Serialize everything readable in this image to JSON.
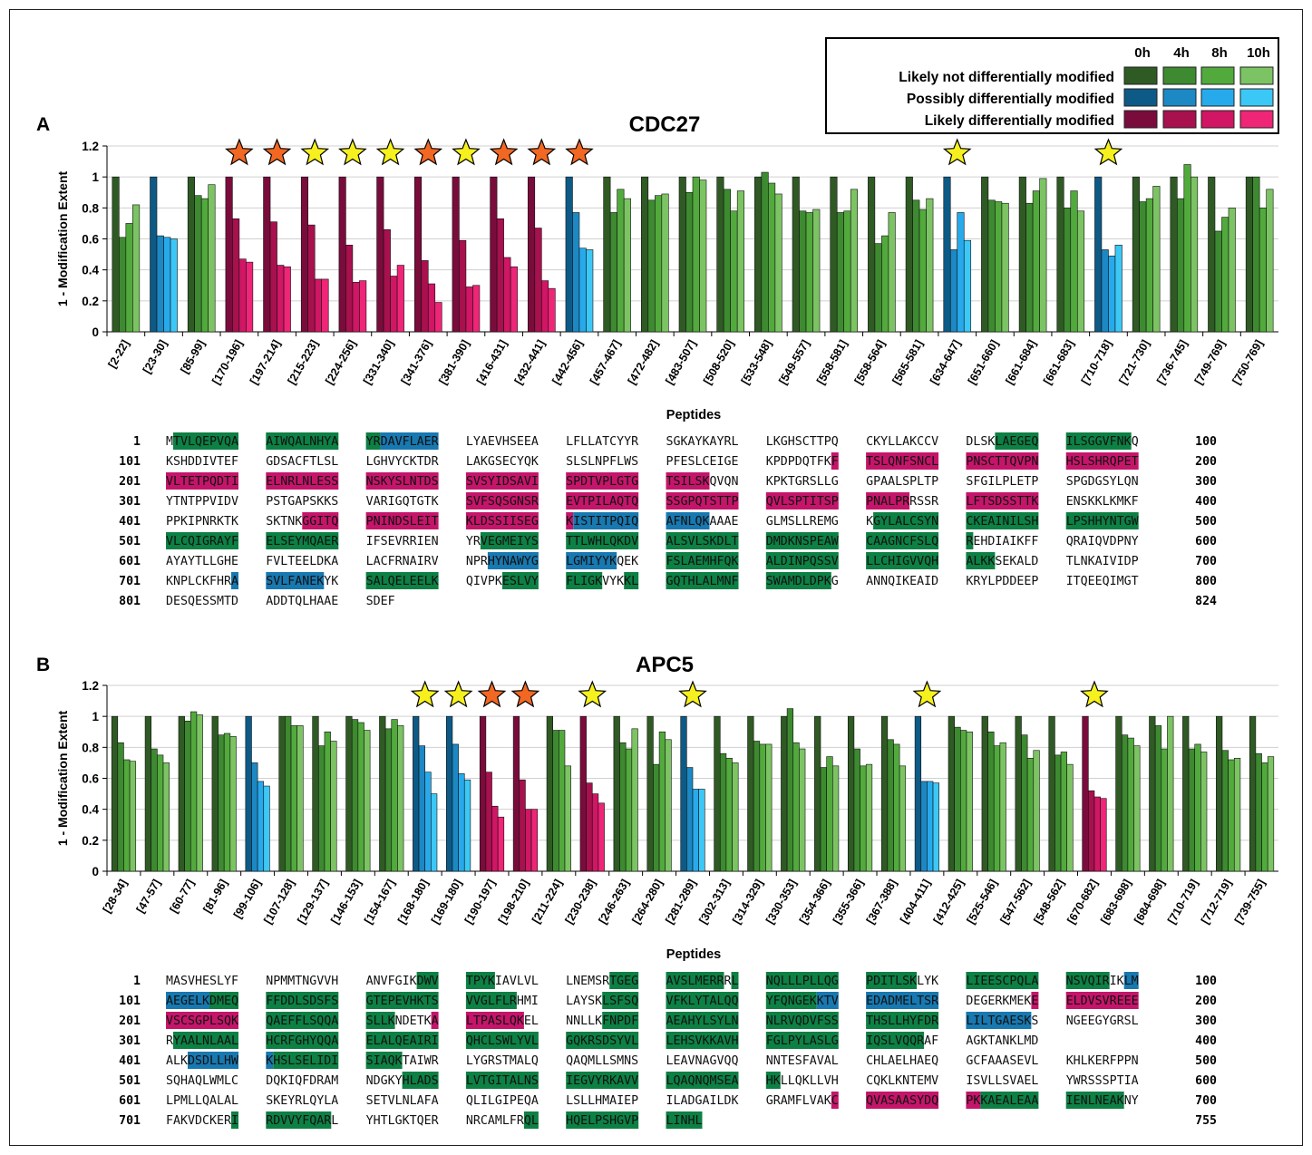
{
  "legend": {
    "timepoints": [
      "0h",
      "4h",
      "8h",
      "10h"
    ],
    "rows": [
      {
        "label": "Likely not differentially modified",
        "colors": [
          "#2f5a24",
          "#3d8a30",
          "#52aa3d",
          "#7cc463"
        ]
      },
      {
        "label": "Possibly differentially modified",
        "colors": [
          "#0d5a86",
          "#1c88c4",
          "#27aaec",
          "#3cc8f6"
        ]
      },
      {
        "label": "Likely differentially modified",
        "colors": [
          "#7a0c3c",
          "#a8104e",
          "#d01664",
          "#ef2577"
        ]
      }
    ],
    "seq_colors": {
      "g": "#0d8044",
      "b": "#1878b0",
      "r": "#c5156a"
    }
  },
  "chart_data": [
    {
      "type": "bar",
      "panel": "A",
      "title": "CDC27",
      "xlabel": "Peptides",
      "ylabel": "1 - Modification Extent",
      "ylim": [
        0,
        1.2
      ],
      "yticks": [
        "0",
        "0.2",
        "0.4",
        "0.6",
        "0.8",
        "1",
        "1.2"
      ],
      "series_names": [
        "0h",
        "4h",
        "8h",
        "10h"
      ],
      "categories": [
        "[2-22]",
        "[23-30]",
        "[85-99]",
        "[170-196]",
        "[197-214]",
        "[215-223]",
        "[224-256]",
        "[331-340]",
        "[341-376]",
        "[381-390]",
        "[416-431]",
        "[432-441]",
        "[442-456]",
        "[457-467]",
        "[472-482]",
        "[483-507]",
        "[508-520]",
        "[533-548]",
        "[549-557]",
        "[558-581]",
        "[558-564]",
        "[565-581]",
        "[634-647]",
        "[651-660]",
        "[661-684]",
        "[661-683]",
        "[710-718]",
        "[721-730]",
        "[736-745]",
        "[749-769]",
        "[750-769]"
      ],
      "values": [
        [
          1,
          0.61,
          0.7,
          0.82
        ],
        [
          1,
          0.62,
          0.61,
          0.6
        ],
        [
          1,
          0.88,
          0.86,
          0.95
        ],
        [
          1,
          0.73,
          0.47,
          0.45
        ],
        [
          1,
          0.71,
          0.43,
          0.42
        ],
        [
          1,
          0.69,
          0.34,
          0.34
        ],
        [
          1,
          0.56,
          0.32,
          0.33
        ],
        [
          1,
          0.66,
          0.36,
          0.43
        ],
        [
          1,
          0.46,
          0.31,
          0.19
        ],
        [
          1,
          0.59,
          0.29,
          0.3
        ],
        [
          1,
          0.73,
          0.48,
          0.42
        ],
        [
          1,
          0.67,
          0.33,
          0.28
        ],
        [
          1,
          0.77,
          0.54,
          0.53
        ],
        [
          1,
          0.77,
          0.92,
          0.86
        ],
        [
          1,
          0.85,
          0.88,
          0.89
        ],
        [
          1,
          0.9,
          1.0,
          0.98
        ],
        [
          1,
          0.92,
          0.78,
          0.91
        ],
        [
          1,
          1.03,
          0.96,
          0.89
        ],
        [
          1,
          0.78,
          0.77,
          0.79
        ],
        [
          1,
          0.77,
          0.78,
          0.92
        ],
        [
          1,
          0.57,
          0.62,
          0.77
        ],
        [
          1,
          0.85,
          0.79,
          0.86
        ],
        [
          1,
          0.53,
          0.77,
          0.59
        ],
        [
          1,
          0.85,
          0.84,
          0.83
        ],
        [
          1,
          0.83,
          0.91,
          0.99
        ],
        [
          1,
          0.8,
          0.91,
          0.78
        ],
        [
          1,
          0.53,
          0.49,
          0.56
        ],
        [
          1,
          0.84,
          0.86,
          0.94
        ],
        [
          1,
          0.86,
          1.08,
          1.0
        ],
        [
          1,
          0.65,
          0.74,
          0.8
        ],
        [
          1,
          1.0,
          0.8,
          0.92
        ]
      ],
      "classes": [
        "n",
        "p",
        "n",
        "d",
        "d",
        "d",
        "d",
        "d",
        "d",
        "d",
        "d",
        "d",
        "p",
        "n",
        "n",
        "n",
        "n",
        "n",
        "n",
        "n",
        "n",
        "n",
        "p",
        "n",
        "n",
        "n",
        "p",
        "n",
        "n",
        "n",
        "n"
      ],
      "stars": [
        [
          "o",
          3
        ],
        [
          "o",
          4
        ],
        [
          "y",
          5
        ],
        [
          "y",
          6
        ],
        [
          "y",
          7
        ],
        [
          "o",
          8
        ],
        [
          "y",
          9
        ],
        [
          "o",
          10
        ],
        [
          "o",
          11
        ],
        [
          "o",
          12
        ],
        [
          "y",
          22
        ],
        [
          "y",
          26
        ]
      ]
    },
    {
      "type": "bar",
      "panel": "B",
      "title": "APC5",
      "xlabel": "Peptides",
      "ylabel": "1 - Modification Extent",
      "ylim": [
        0,
        1.2
      ],
      "yticks": [
        "0",
        "0.2",
        "0.4",
        "0.6",
        "0.8",
        "1",
        "1.2"
      ],
      "series_names": [
        "0h",
        "4h",
        "8h",
        "10h"
      ],
      "categories": [
        "[28-34]",
        "[47-57]",
        "[60-77]",
        "[81-96]",
        "[99-106]",
        "[107-128]",
        "[129-137]",
        "[146-153]",
        "[154-167]",
        "[168-180]",
        "[169-180]",
        "[190-197]",
        "[198-210]",
        "[211-224]",
        "[230-238]",
        "[246-263]",
        "[264-280]",
        "[281-289]",
        "[302-313]",
        "[314-329]",
        "[330-353]",
        "[354-366]",
        "[355-366]",
        "[367-388]",
        "[404-411]",
        "[412-425]",
        "[525-546]",
        "[547-562]",
        "[548-562]",
        "[670-682]",
        "[683-698]",
        "[684-698]",
        "[710-719]",
        "[712-719]",
        "[739-755]"
      ],
      "values": [
        [
          1,
          0.83,
          0.72,
          0.71
        ],
        [
          1,
          0.79,
          0.75,
          0.7
        ],
        [
          1,
          0.97,
          1.03,
          1.01
        ],
        [
          1,
          0.88,
          0.89,
          0.87
        ],
        [
          1,
          0.7,
          0.58,
          0.55
        ],
        [
          1,
          1.0,
          0.94,
          0.94
        ],
        [
          1,
          0.81,
          0.9,
          0.84
        ],
        [
          1,
          0.98,
          0.96,
          0.91
        ],
        [
          1,
          0.92,
          0.98,
          0.94
        ],
        [
          1,
          0.81,
          0.64,
          0.5
        ],
        [
          1,
          0.82,
          0.63,
          0.59
        ],
        [
          1,
          0.64,
          0.42,
          0.35
        ],
        [
          1,
          0.59,
          0.4,
          0.4
        ],
        [
          1,
          0.91,
          0.91,
          0.68
        ],
        [
          1,
          0.57,
          0.5,
          0.44
        ],
        [
          1,
          0.83,
          0.79,
          0.92
        ],
        [
          1,
          0.69,
          0.9,
          0.85
        ],
        [
          1,
          0.67,
          0.53,
          0.53
        ],
        [
          1,
          0.76,
          0.73,
          0.7
        ],
        [
          1,
          0.84,
          0.82,
          0.82
        ],
        [
          1,
          1.05,
          0.83,
          0.79
        ],
        [
          1,
          0.67,
          0.74,
          0.68
        ],
        [
          1,
          0.79,
          0.68,
          0.69
        ],
        [
          1,
          0.85,
          0.82,
          0.68
        ],
        [
          1,
          0.58,
          0.58,
          0.57
        ],
        [
          1,
          0.93,
          0.91,
          0.9
        ],
        [
          1,
          0.9,
          0.81,
          0.83
        ],
        [
          1,
          0.88,
          0.73,
          0.78
        ],
        [
          1,
          0.75,
          0.77,
          0.69
        ],
        [
          1,
          0.52,
          0.48,
          0.47
        ],
        [
          1,
          0.88,
          0.86,
          0.81
        ],
        [
          1,
          0.94,
          0.79,
          1.0
        ],
        [
          1,
          0.79,
          0.82,
          0.77
        ],
        [
          1,
          0.78,
          0.72,
          0.73
        ],
        [
          1,
          0.76,
          0.7,
          0.74
        ]
      ],
      "classes": [
        "n",
        "n",
        "n",
        "n",
        "p",
        "n",
        "n",
        "n",
        "n",
        "p",
        "p",
        "d",
        "d",
        "n",
        "d",
        "n",
        "n",
        "p",
        "n",
        "n",
        "n",
        "n",
        "n",
        "n",
        "p",
        "n",
        "n",
        "n",
        "n",
        "d",
        "n",
        "n",
        "n",
        "n",
        "n"
      ],
      "stars": [
        [
          "y",
          9
        ],
        [
          "y",
          10
        ],
        [
          "o",
          11
        ],
        [
          "o",
          12
        ],
        [
          "y",
          14
        ],
        [
          "y",
          17
        ],
        [
          "y",
          24
        ],
        [
          "y",
          29
        ]
      ]
    }
  ],
  "sequences": [
    {
      "panel": "A",
      "end": "824",
      "lines": [
        {
          "num": "1",
          "end": "100",
          "blocks": [
            "M|TVLQEPVQA:g",
            "AIWQALNHYA:g",
            "YR:g|DAVFLAER:b",
            "LYAEVHSEEA",
            "LFLLATCYYR",
            "SGKAYKAYRL",
            "LKGHSCTTPQ",
            "CKYLLAKCCV",
            "DLSK|LAEGEQ:g",
            "ILSGGVFNK:g|Q"
          ]
        },
        {
          "num": "101",
          "end": "200",
          "blocks": [
            "KSHDDIVTEF",
            "GDSACFTLSL",
            "LGHVYCKTDR",
            "LAKGSECYQK",
            "SLSLNPFLWS",
            "PFESLCEIGE",
            "KPDPDQTFK|F:r",
            "TSLQNFSNCL:r",
            "PNSCTTQVPN:r",
            "HSLSHRQPET:r"
          ]
        },
        {
          "num": "201",
          "end": "300",
          "blocks": [
            "VLTETPQDTI:r",
            "ELNRLNLESS:r",
            "NSKYSLNTDS:r",
            "SVSYIDSAVI:r",
            "SPDTVPLGTG:r",
            "TSILSK:r|QVQN",
            "KPKTGRSLLG",
            "GPAALSPLTP",
            "SFGILPLETP",
            "SPGDGSYLQN"
          ]
        },
        {
          "num": "301",
          "end": "400",
          "blocks": [
            "YTNTPPVIDV",
            "PSTGAPSKKS",
            "VARIGQTGTK",
            "SVFSQSGNSR:r",
            "EVTPILAQTQ:r",
            "SSGPQTSTTP:r",
            "QVLSPTITSP:r",
            "PNALPR:r|RSSR",
            "LFTSDSSTTK:r",
            "ENSKKLKMKF"
          ]
        },
        {
          "num": "401",
          "end": "500",
          "blocks": [
            "PPKIPNRKTK",
            "SKTNK|GGITQ:r",
            "PNINDSLEIT:r",
            "KLDSSIISEG:r",
            "K:r|ISTITPQIQ:b",
            "AFNLQK:b|AAAE",
            "GLMSLLREMG",
            "K|GYLALCSYN:g",
            "CKEAINILSH:g",
            "LPSHHYNTGW:g"
          ]
        },
        {
          "num": "501",
          "end": "600",
          "blocks": [
            "VLCQIGRAYF:g",
            "ELSEYMQAER:g",
            "IFSEVRRIEN",
            "YR|VEGMEIYS:g",
            "TTLWHLQKDV:g",
            "ALSVLSKDLT:g",
            "DMDKNSPEAW:g",
            "CAAGNCFSLQ:g",
            "R:g|EHDIAIKFF",
            "QRAIQVDPNY"
          ]
        },
        {
          "num": "601",
          "end": "700",
          "blocks": [
            "AYAYTLLGHE",
            "FVLTEELDKA",
            "LACFRNAIRV",
            "NPR|HYNAWYG:b",
            "LGMIYYK:b|QEK",
            "FSLAEMHFQK:g",
            "ALDINPQSSV:g",
            "LLCHIGVVQH:g",
            "ALKK:g|SEKALD",
            "TLNKAIVIDP"
          ]
        },
        {
          "num": "701",
          "end": "800",
          "blocks": [
            "KNPLCKFHR|A:b",
            "SVLFANEK:b|YK",
            "SALQELEELK:g",
            "QIVPK|ESLVY:g",
            "FLIGK:g|VYK|KL:g",
            "GQTHLALMNF:g",
            "SWAMDLDPK:g|G",
            "ANNQIKEAID",
            "KRYLPDDEEP",
            "ITQEEQIMGT"
          ]
        },
        {
          "num": "801",
          "end": "824",
          "blocks": [
            "DESQESSMTD",
            "ADDTQLHAAE",
            "SDEF"
          ]
        }
      ]
    },
    {
      "panel": "B",
      "end": "755",
      "lines": [
        {
          "num": "1",
          "end": "100",
          "blocks": [
            "MASVHESLYF",
            "NPMMTNGVVH",
            "ANVFGIK|DWV:g",
            "TPYK:g|IAVLVL",
            "LNEMSR|TGEG:g",
            "AVSLMERR:g|R|L:g",
            "NQLLLPLLQG:g",
            "PDITLSK:g|LYK",
            "LIEESCPQLA:g",
            "NSVQIR:g|IK|LM:b"
          ]
        },
        {
          "num": "101",
          "end": "200",
          "blocks": [
            "AEGELK:b|DMEQ:g",
            "FFDDLSDSFS:g",
            "GTEPEVHKTS:g",
            "VVGLFLR:g|HMI",
            "LAYSK|LSFSQ:g",
            "VFKLYTALQQ:g",
            "YFQNGEK:g|KTV:b",
            "EDADMELTSR:b",
            "DEGERKMEK|E:r",
            "ELDVSVREEE:r"
          ]
        },
        {
          "num": "201",
          "end": "300",
          "blocks": [
            "VSCSGPLSQK:r",
            "QAEFFLSQQA:g",
            "SLLK:g|NDETK|A:r",
            "LTPASLQK:r|EL",
            "NNLLK|FNPDF:g",
            "AEAHYLSYLN:g",
            "NLRVQDVFSS:g",
            "THSLLHYFDR:g",
            "LILTGAESK:b|S",
            "NGEEGYGRSL"
          ]
        },
        {
          "num": "301",
          "end": "400",
          "blocks": [
            "R|YAALNLAAL:g",
            "HCRFGHYQQA:g",
            "ELALQEAIRI:g",
            "QHCLSWLYVL:g",
            "GQKRSDSYVL:g",
            "LEHSVKKAVH:g",
            "FGLPYLASLG:g",
            "IQSLVQQR:g|AF",
            "AGKTANKLMD"
          ]
        },
        {
          "num": "401",
          "end": "500",
          "blocks": [
            "ALK|DSDLLHW:b",
            "K:b|HSLSELIDI:g",
            "SIAQK:g|TAIWR",
            "LYGRSTMALQ",
            "QAQMLLSMNS",
            "LEAVNAGVQQ",
            "NNTESFAVAL",
            "CHLAELHAEQ",
            "GCFAAASEVL",
            "KHLKERFPPN"
          ]
        },
        {
          "num": "501",
          "end": "600",
          "blocks": [
            "SQHAQLWMLC",
            "DQKIQFDRAM",
            "NDGKY|HLADS:g",
            "LVTGITALNS:g",
            "IEGVYRKAVV:g",
            "LQAQNQMSEA:g",
            "HK:g|LLQKLLVH",
            "CQKLKNTEMV",
            "ISVLLSVAEL",
            "YWRSSSPTIA"
          ]
        },
        {
          "num": "601",
          "end": "700",
          "blocks": [
            "LPMLLQALAL",
            "SKEYRLQYLA",
            "SETVLNLAFA",
            "QLILGIPEQA",
            "LSLLHMAIEP",
            "ILADGAILDK",
            "GRAMFLVAK|C:r",
            "QVASAASYDQ:r",
            "PK:r|KAEALEAA:g",
            "IENLNEAK:g|NY"
          ]
        },
        {
          "num": "701",
          "end": "755",
          "blocks": [
            "FAKVDCKER|I:g",
            "RDVVYFQAR:g|L",
            "YHTLGKTQER",
            "NRCAMLFR|QL:g",
            "HQELPSHGVP:g",
            "LINHL:g"
          ]
        }
      ]
    }
  ]
}
